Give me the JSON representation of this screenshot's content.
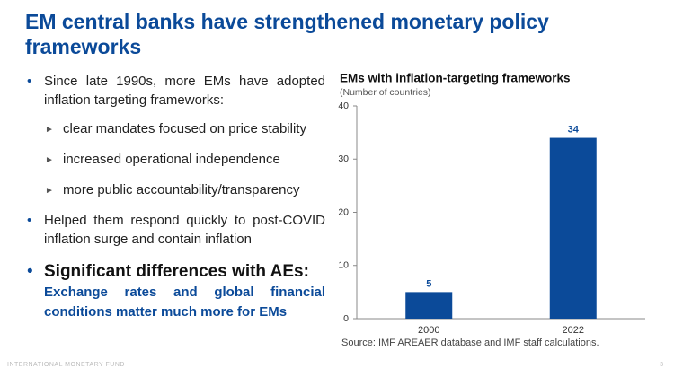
{
  "title": "EM central banks have strengthened monetary policy frameworks",
  "bullets": [
    {
      "text": "Since late 1990s, more EMs have adopted inflation targeting frameworks:",
      "sub": [
        "clear mandates focused on price stability",
        "increased operational independence",
        "more public accountability/transparency"
      ]
    },
    {
      "text": "Helped them respond quickly to post-COVID inflation surge and contain inflation"
    },
    {
      "text": "Significant differences with AEs:",
      "detail": "Exchange rates and global financial conditions matter much more for EMs"
    }
  ],
  "chart_data": {
    "type": "bar",
    "title": "EMs with inflation-targeting frameworks",
    "subtitle": "(Number of countries)",
    "categories": [
      "2000",
      "2022"
    ],
    "values": [
      5,
      34
    ],
    "color": "#0b4a99",
    "ylim": [
      0,
      40
    ],
    "yticks": [
      0,
      10,
      20,
      30,
      40
    ],
    "grid": false,
    "source": "Source: IMF AREAER database and IMF staff calculations."
  },
  "footer": "INTERNATIONAL MONETARY FUND",
  "page_number": "3"
}
